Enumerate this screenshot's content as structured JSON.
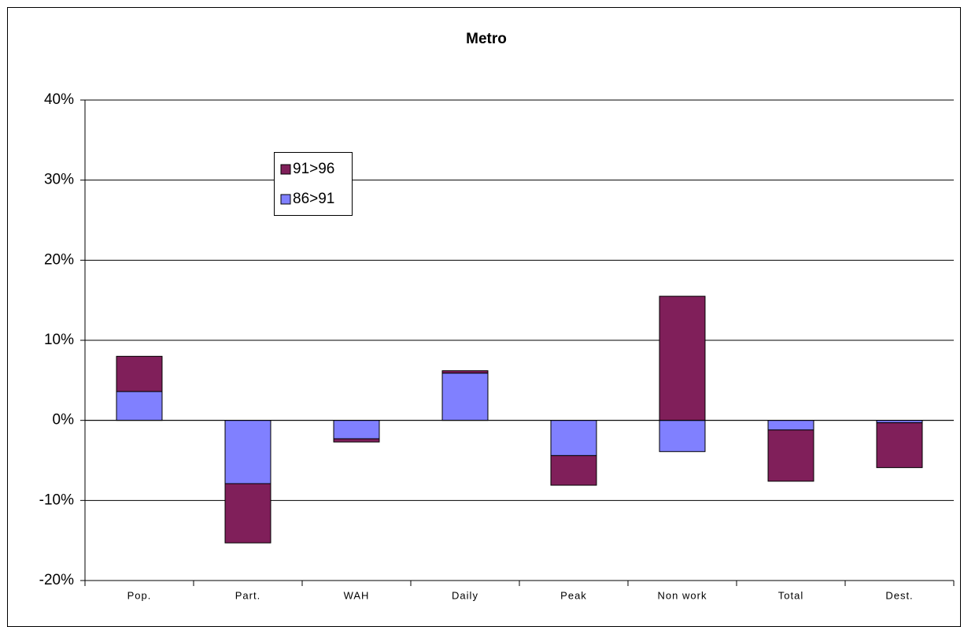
{
  "chart_data": {
    "type": "stacked-bar",
    "title": "Metro",
    "categories": [
      "Pop.",
      "Part.",
      "WAH",
      "Daily",
      "Peak",
      "Non work",
      "Total",
      "Dest."
    ],
    "series": [
      {
        "name": "86>91",
        "color": "#8080ff",
        "values": [
          3.6,
          -7.9,
          -2.3,
          5.9,
          -4.4,
          -3.9,
          -1.2,
          -0.3
        ]
      },
      {
        "name": "91>96",
        "color": "#801f5a",
        "values": [
          4.4,
          -7.4,
          -0.4,
          0.3,
          -3.7,
          15.5,
          -6.4,
          -5.6
        ]
      }
    ],
    "ylim": [
      -20,
      40
    ],
    "yticks": [
      {
        "value": -20,
        "label": "-20%"
      },
      {
        "value": -10,
        "label": "-10%"
      },
      {
        "value": 0,
        "label": "0%"
      },
      {
        "value": 10,
        "label": "10%"
      },
      {
        "value": 20,
        "label": "20%"
      },
      {
        "value": 30,
        "label": "30%"
      },
      {
        "value": 40,
        "label": "40%"
      }
    ],
    "grid": true
  }
}
